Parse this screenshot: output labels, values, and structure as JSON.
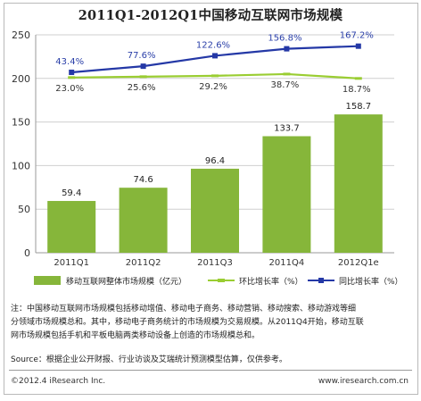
{
  "chart_data": {
    "type": "bar",
    "title": "2011Q1-2012Q1中国移动互联网市场规模",
    "categories": [
      "2011Q1",
      "2011Q2",
      "2011Q3",
      "2011Q4",
      "2012Q1e"
    ],
    "values": [
      59.4,
      74.6,
      96.4,
      133.7,
      158.7
    ],
    "value_labels": [
      "59.4",
      "74.6",
      "96.4",
      "133.7",
      "158.7"
    ],
    "ylim": [
      0,
      250
    ],
    "yticks": [
      0,
      50,
      100,
      150,
      200,
      250
    ],
    "grid": true,
    "legend_position": "bottom",
    "bar_series_name": "移动互联网整体市场规模（亿元）",
    "bar_color": "#86b63a",
    "lines": [
      {
        "name": "环比增长率（%）",
        "color": "#9acd32",
        "marker": "dash",
        "labels": [
          "23.0%",
          "25.6%",
          "29.2%",
          "38.7%",
          "18.7%"
        ],
        "plot_positions": [
          201,
          202,
          203,
          205,
          200
        ]
      },
      {
        "name": "同比增长率（%）",
        "color": "#2438a6",
        "marker": "square",
        "labels": [
          "43.4%",
          "77.6%",
          "122.6%",
          "156.8%",
          "167.2%"
        ],
        "plot_positions": [
          207,
          214,
          226,
          234,
          237
        ]
      }
    ]
  },
  "notes": {
    "line1": "注：中国移动互联网市场规模包括移动增值、移动电子商务、移动营销、移动搜索、移动游戏等细",
    "line2": "分领域市场规模总和。其中，移动电子商务统计的市场规模为交易规模。从2011Q4开始，移动互联",
    "line3": "网市场规模包括手机和平板电脑两类移动设备上创造的市场规模总和。"
  },
  "source": "Source：根据企业公开财报、行业访谈及艾瑞统计预测模型估算，仅供参考。",
  "footer": {
    "copyright": "©2012.4 iResearch Inc.",
    "website": "www.iresearch.com.cn"
  }
}
